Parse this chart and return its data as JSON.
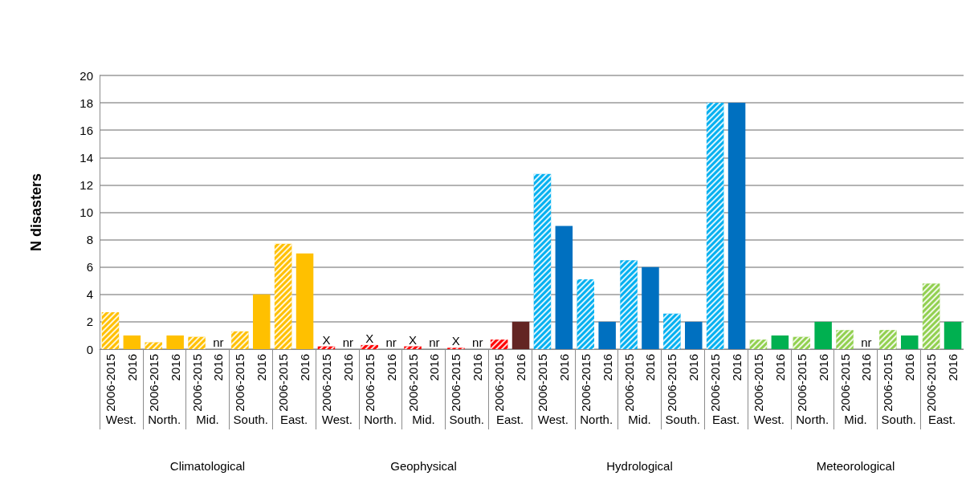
{
  "chart_data": [
    {
      "type": "bar",
      "xlabel": "Climatological",
      "ylabel": "N disasters",
      "categories": [
        "West.",
        "North.",
        "Mid.",
        "South.",
        "East."
      ],
      "ylim": [
        0,
        20
      ],
      "yticks": [
        0,
        2,
        4,
        6,
        8,
        10,
        12,
        14,
        16,
        18,
        20
      ],
      "grid": "y",
      "series": [
        {
          "name": "2006-2015",
          "color": "#ffc000",
          "values": [
            2.7,
            0.5,
            0.9,
            1.3,
            7.7
          ]
        },
        {
          "name": "2016",
          "color": "#ffc000",
          "values": [
            1,
            1,
            null,
            4,
            7
          ]
        }
      ],
      "annotations": [
        {
          "text": "nr",
          "x": "Mid.",
          "y": 0
        }
      ]
    },
    {
      "type": "bar",
      "xlabel": "Geophysical",
      "categories": [
        "West.",
        "North.",
        "Mid.",
        "South.",
        "East."
      ],
      "ylim": [
        0,
        20
      ],
      "yticks": [
        0,
        2,
        4,
        6,
        8,
        10,
        12,
        14,
        16,
        18,
        20
      ],
      "grid": "y",
      "tick_labels": "x",
      "series": [
        {
          "name": "2006-2015",
          "color": "#ff0000",
          "values": [
            0.2,
            0.3,
            0.2,
            0.1,
            0.7
          ]
        },
        {
          "name": "2016",
          "color": "#632523",
          "values": [
            null,
            null,
            null,
            null,
            2
          ]
        }
      ],
      "annotations": [
        {
          "text": "X",
          "x": "West.",
          "y": 0.2
        },
        {
          "text": "nr",
          "x": "West.",
          "y": 0
        },
        {
          "text": "X",
          "x": "North.",
          "y": 0.3
        },
        {
          "text": "nr",
          "x": "North.",
          "y": 0
        },
        {
          "text": "X",
          "x": "Mid.",
          "y": 0.2
        },
        {
          "text": "nr",
          "x": "Mid.",
          "y": 0
        },
        {
          "text": "X",
          "x": "South.",
          "y": 0.1
        },
        {
          "text": "nr",
          "x": "South.",
          "y": 0
        }
      ]
    },
    {
      "type": "bar",
      "xlabel": "Hydrological",
      "categories": [
        "West.",
        "North.",
        "Mid.",
        "South.",
        "East."
      ],
      "ylim": [
        0,
        20
      ],
      "yticks": [
        0,
        2,
        4,
        6,
        8,
        10,
        12,
        14,
        16,
        18,
        20
      ],
      "grid": "y",
      "tick_labels": "x",
      "series": [
        {
          "name": "2006-2015",
          "color": "#00b0f0",
          "values": [
            12.8,
            5.1,
            6.5,
            2.6,
            18
          ]
        },
        {
          "name": "2016",
          "color": "#0070c0",
          "values": [
            9,
            2,
            6,
            2,
            18
          ]
        }
      ]
    },
    {
      "type": "bar",
      "xlabel": "Meteorological",
      "categories": [
        "West.",
        "North.",
        "Mid.",
        "South.",
        "East."
      ],
      "ylim": [
        0,
        20
      ],
      "yticks": [
        0,
        2,
        4,
        6,
        8,
        10,
        12,
        14,
        16,
        18,
        20
      ],
      "grid": "y",
      "tick_labels": "x",
      "series": [
        {
          "name": "2006-2015",
          "color": "#92d050",
          "values": [
            0.7,
            0.9,
            1.4,
            1.4,
            4.8
          ]
        },
        {
          "name": "2016",
          "color": "#00b050",
          "values": [
            1,
            2,
            null,
            1,
            2
          ]
        }
      ],
      "annotations": [
        {
          "text": "nr",
          "x": "Mid.",
          "y": 0
        }
      ]
    }
  ]
}
